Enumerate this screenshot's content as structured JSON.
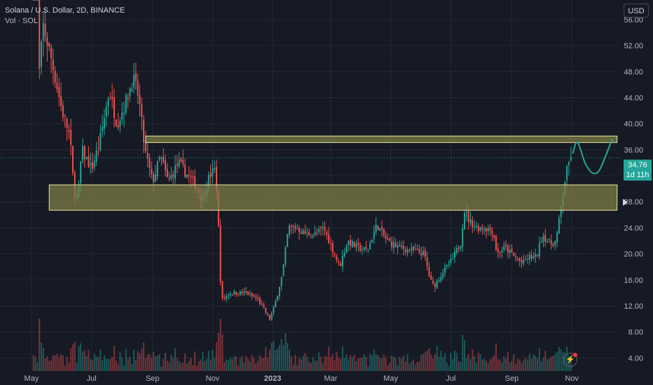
{
  "header": {
    "symbol": "Solana / U.S. Dollar, 2D, BINANCE",
    "volume_label": "Vol · SOL",
    "currency": "USD"
  },
  "price_tag": {
    "price": "34.76",
    "countdown": "1d 11h"
  },
  "colors": {
    "background": "#161a25",
    "up": "#26a69a",
    "down": "#ef5350",
    "zone_fill": "#7d7c47",
    "zone_border": "#e8e59e",
    "projection": "#26a69a",
    "text": "#b2b5be"
  },
  "icons": [
    "lightning-icon",
    "scale-arrow-icon"
  ],
  "chart_data": {
    "type": "candlestick",
    "title": "Solana / U.S. Dollar, 2D, BINANCE",
    "interval": "2D",
    "ylim": [
      2.0,
      59.0
    ],
    "y_ticks": [
      "56.00",
      "52.00",
      "48.00",
      "44.00",
      "40.00",
      "36.00",
      "32.00",
      "28.00",
      "24.00",
      "20.00",
      "16.00",
      "12.00",
      "8.00",
      "4.00"
    ],
    "x_ticks": [
      {
        "label": "May",
        "date": "2022-05-01"
      },
      {
        "label": "Jul",
        "date": "2022-07-01"
      },
      {
        "label": "Sep",
        "date": "2022-09-01"
      },
      {
        "label": "Nov",
        "date": "2022-11-01"
      },
      {
        "label": "2023",
        "date": "2023-01-01"
      },
      {
        "label": "Mar",
        "date": "2023-03-01"
      },
      {
        "label": "May",
        "date": "2023-05-01"
      },
      {
        "label": "Jul",
        "date": "2023-07-01"
      },
      {
        "label": "Sep",
        "date": "2023-09-01"
      },
      {
        "label": "Nov",
        "date": "2023-11-01"
      }
    ],
    "x_range": [
      "2022-03-30",
      "2023-12-20"
    ],
    "price_path": [
      [
        "2022-05-07",
        83.0
      ],
      [
        "2022-05-09",
        48.0
      ],
      [
        "2022-05-13",
        55.0
      ],
      [
        "2022-05-21",
        50.0
      ],
      [
        "2022-06-01",
        42.0
      ],
      [
        "2022-06-09",
        38.0
      ],
      [
        "2022-06-13",
        30.0
      ],
      [
        "2022-06-17",
        28.0
      ],
      [
        "2022-06-21",
        36.0
      ],
      [
        "2022-07-01",
        33.0
      ],
      [
        "2022-07-09",
        37.0
      ],
      [
        "2022-07-19",
        45.0
      ],
      [
        "2022-07-27",
        40.0
      ],
      [
        "2022-08-04",
        43.0
      ],
      [
        "2022-08-12",
        47.0
      ],
      [
        "2022-08-18",
        44.0
      ],
      [
        "2022-08-24",
        36.0
      ],
      [
        "2022-09-01",
        31.0
      ],
      [
        "2022-09-09",
        35.0
      ],
      [
        "2022-09-17",
        31.0
      ],
      [
        "2022-09-27",
        34.0
      ],
      [
        "2022-10-07",
        32.0
      ],
      [
        "2022-10-15",
        30.5
      ],
      [
        "2022-10-21",
        28.5
      ],
      [
        "2022-10-29",
        32.0
      ],
      [
        "2022-11-04",
        33.0
      ],
      [
        "2022-11-07",
        24.0
      ],
      [
        "2022-11-09",
        16.0
      ],
      [
        "2022-11-11",
        13.0
      ],
      [
        "2022-11-19",
        14.0
      ],
      [
        "2022-12-05",
        14.0
      ],
      [
        "2022-12-17",
        13.0
      ],
      [
        "2022-12-29",
        10.0
      ],
      [
        "2023-01-03",
        12.0
      ],
      [
        "2023-01-11",
        17.0
      ],
      [
        "2023-01-17",
        24.0
      ],
      [
        "2023-01-25",
        24.0
      ],
      [
        "2023-02-04",
        23.0
      ],
      [
        "2023-02-14",
        23.0
      ],
      [
        "2023-02-22",
        24.0
      ],
      [
        "2023-03-02",
        21.0
      ],
      [
        "2023-03-10",
        18.0
      ],
      [
        "2023-03-18",
        22.0
      ],
      [
        "2023-03-28",
        21.0
      ],
      [
        "2023-04-07",
        20.5
      ],
      [
        "2023-04-17",
        24.5
      ],
      [
        "2023-04-27",
        22.0
      ],
      [
        "2023-05-09",
        21.0
      ],
      [
        "2023-05-23",
        20.5
      ],
      [
        "2023-06-04",
        20.0
      ],
      [
        "2023-06-10",
        16.0
      ],
      [
        "2023-06-14",
        15.0
      ],
      [
        "2023-06-22",
        17.0
      ],
      [
        "2023-07-02",
        19.0
      ],
      [
        "2023-07-12",
        22.0
      ],
      [
        "2023-07-14",
        27.0
      ],
      [
        "2023-07-20",
        25.0
      ],
      [
        "2023-07-28",
        24.0
      ],
      [
        "2023-08-05",
        24.0
      ],
      [
        "2023-08-13",
        23.5
      ],
      [
        "2023-08-17",
        20.0
      ],
      [
        "2023-08-25",
        21.0
      ],
      [
        "2023-09-04",
        19.5
      ],
      [
        "2023-09-12",
        18.5
      ],
      [
        "2023-09-18",
        19.5
      ],
      [
        "2023-09-26",
        19.5
      ],
      [
        "2023-10-02",
        23.0
      ],
      [
        "2023-10-10",
        21.5
      ],
      [
        "2023-10-16",
        22.0
      ],
      [
        "2023-10-20",
        26.0
      ],
      [
        "2023-10-24",
        30.5
      ],
      [
        "2023-10-28",
        33.5
      ],
      [
        "2023-10-31",
        34.76
      ]
    ],
    "zones": [
      {
        "name": "resistance",
        "from": "2022-08-25",
        "to": "2023-12-17",
        "low": 37.1,
        "high": 38.1
      },
      {
        "name": "support",
        "from": "2022-05-19",
        "to": "2023-12-17",
        "low": 26.7,
        "high": 30.6
      }
    ],
    "projection": [
      [
        "2023-11-02",
        35.5
      ],
      [
        "2023-11-06",
        37.6
      ],
      [
        "2023-11-10",
        36.0
      ],
      [
        "2023-11-14",
        34.0
      ],
      [
        "2023-11-18",
        33.0
      ],
      [
        "2023-11-22",
        32.3
      ],
      [
        "2023-11-28",
        32.4
      ],
      [
        "2023-12-04",
        34.5
      ],
      [
        "2023-12-12",
        37.6
      ]
    ]
  }
}
